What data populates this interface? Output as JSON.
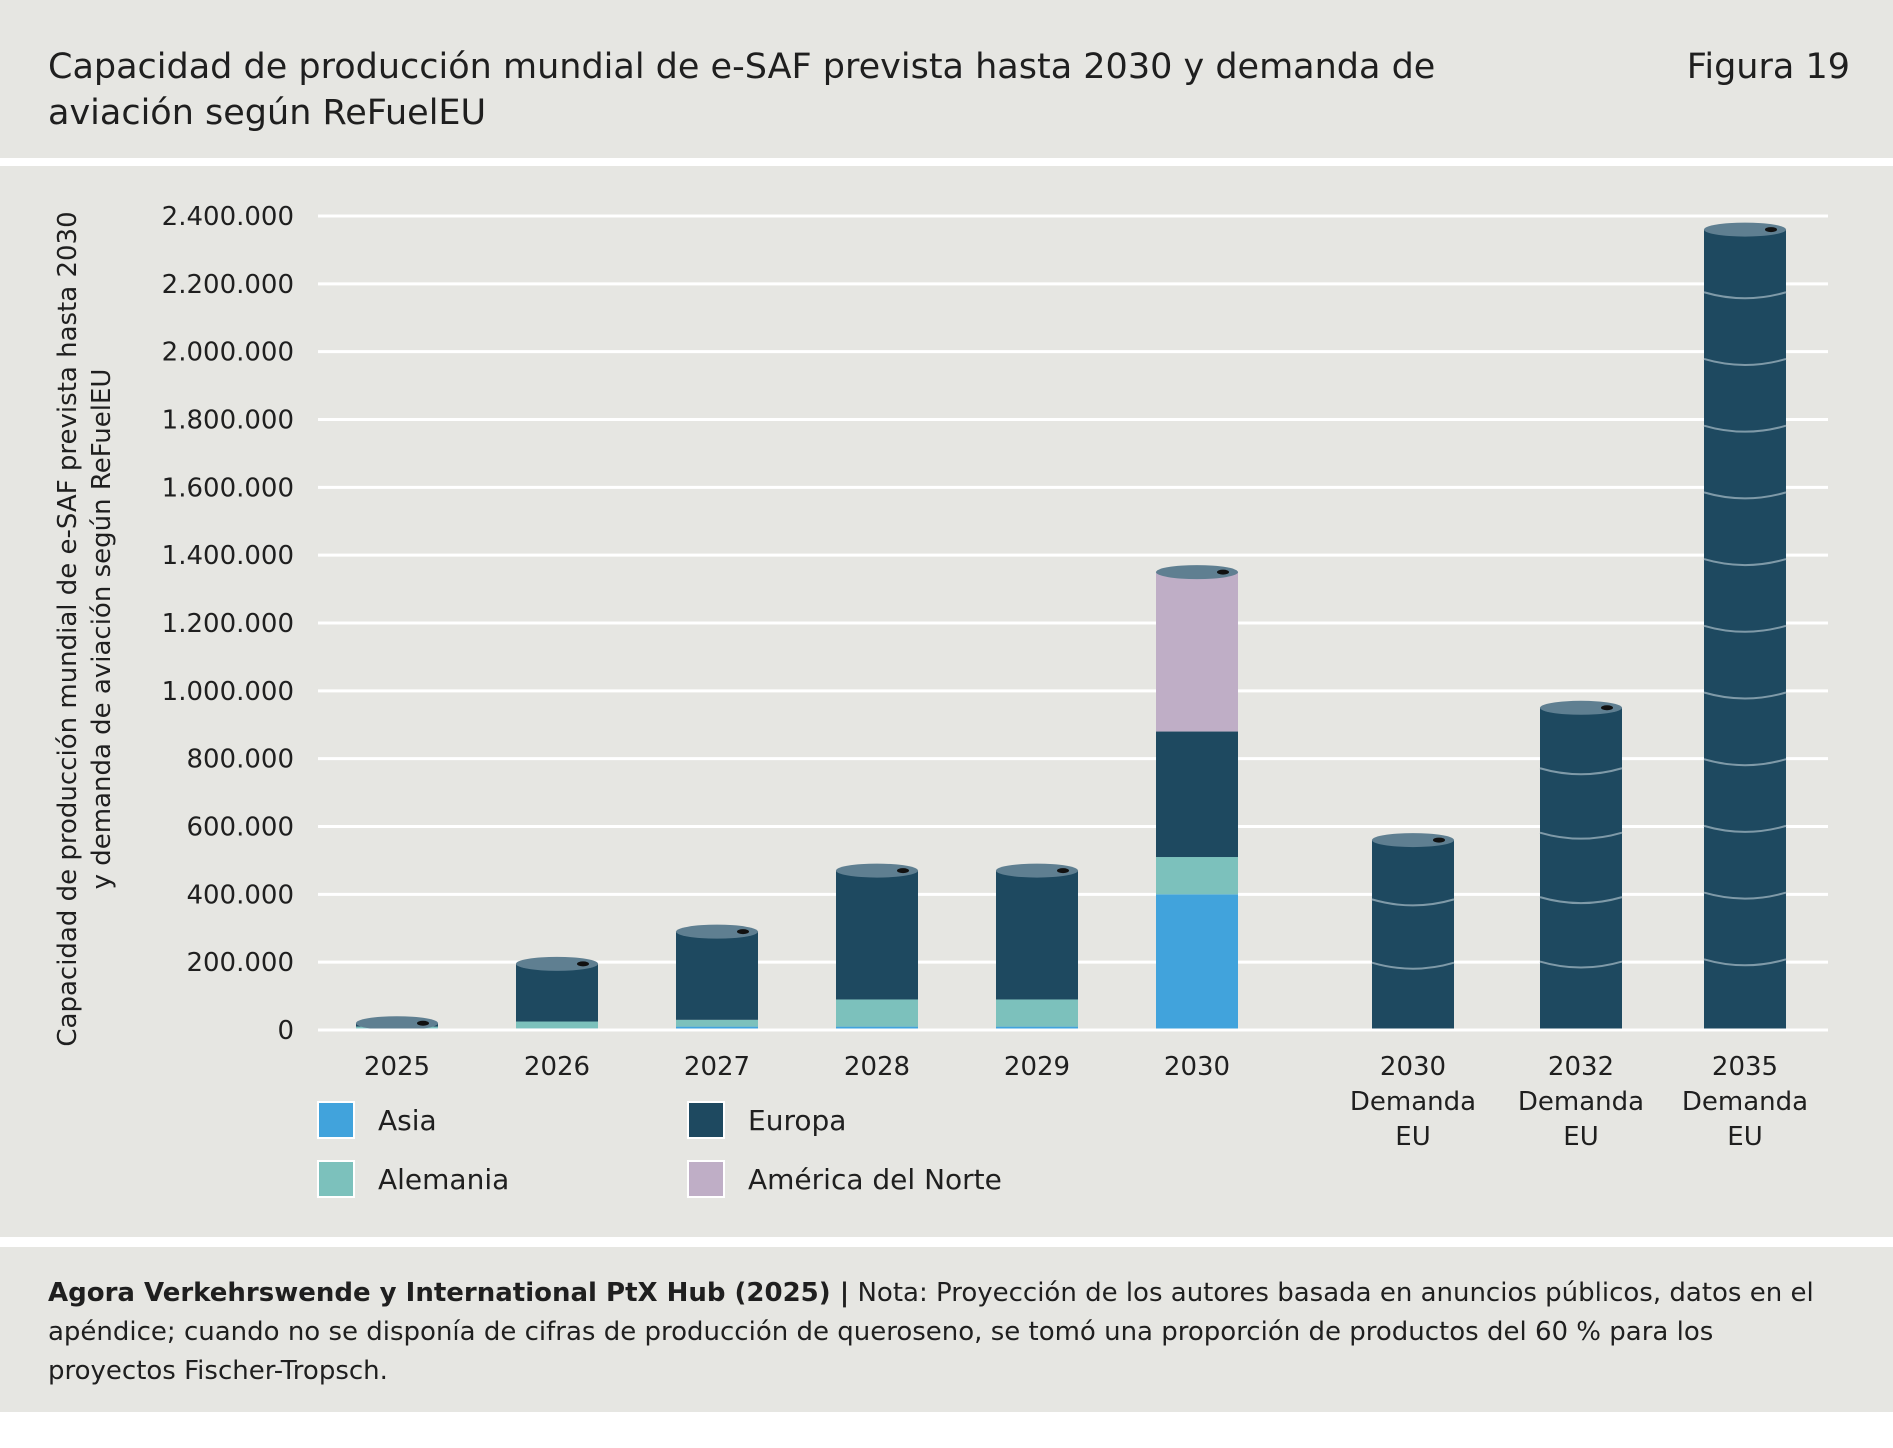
{
  "header": {
    "title": "Capacidad de producción mundial de e-SAF prevista hasta 2030 y demanda de aviación según ReFuelEU",
    "figure_label": "Figura 19"
  },
  "footer": {
    "source": "Agora Verkehrswende y International PtX Hub (2025) |",
    "note": " Nota: Proyección de los autores basada en anuncios públicos, datos en el apéndice; cuando no se disponía de cifras de producción de queroseno, se tomó una proporción de productos del 60 % para los proyectos Fischer-Tropsch."
  },
  "chart_data": {
    "type": "bar",
    "stacked": true,
    "ylabel": "Capacidad de producción mundial de e-SAF prevista hasta 2030 y demanda de aviación según ReFuelEU",
    "ylim": [
      0,
      2400000
    ],
    "yticks": [
      0,
      200000,
      400000,
      600000,
      800000,
      1000000,
      1200000,
      1400000,
      1600000,
      1800000,
      2000000,
      2200000,
      2400000
    ],
    "ytick_labels": [
      "0",
      "200.000",
      "400.000",
      "600.000",
      "800.000",
      "1.000.000",
      "1.200.000",
      "1.400.000",
      "1.600.000",
      "1.800.000",
      "2.000.000",
      "2.200.000",
      "2.400.000"
    ],
    "grid": true,
    "legend_position": "bottom-left",
    "categories": [
      [
        "2025"
      ],
      [
        "2026"
      ],
      [
        "2027"
      ],
      [
        "2028"
      ],
      [
        "2029"
      ],
      [
        "2030"
      ],
      [
        "2030",
        "Demanda",
        "EU"
      ],
      [
        "2032",
        "Demanda",
        "EU"
      ],
      [
        "2035",
        "Demanda",
        "EU"
      ]
    ],
    "series": [
      {
        "name": "Asia",
        "color": "#41a3dc",
        "values": [
          5000,
          5000,
          10000,
          10000,
          10000,
          400000,
          0,
          0,
          0
        ]
      },
      {
        "name": "Alemania",
        "color": "#7cc1bc",
        "values": [
          5000,
          20000,
          20000,
          80000,
          80000,
          110000,
          0,
          0,
          0
        ]
      },
      {
        "name": "Europa",
        "color": "#1e4960",
        "values": [
          10000,
          170000,
          260000,
          380000,
          380000,
          370000,
          560000,
          950000,
          2360000
        ]
      },
      {
        "name": "América del Norte",
        "color": "#bfaec6",
        "values": [
          0,
          0,
          0,
          0,
          0,
          470000,
          0,
          0,
          0
        ]
      }
    ]
  }
}
